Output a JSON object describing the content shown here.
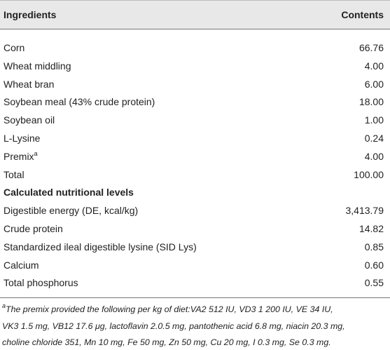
{
  "table": {
    "header": [
      "Ingredients",
      "Contents"
    ],
    "rows": [
      {
        "label": "Corn",
        "value": "66.76"
      },
      {
        "label": "Wheat middling",
        "value": "4.00"
      },
      {
        "label": "Wheat bran",
        "value": "6.00"
      },
      {
        "label": "Soybean meal (43% crude protein)",
        "value": "18.00"
      },
      {
        "label": "Soybean oil",
        "value": "1.00"
      },
      {
        "label": "L-Lysine",
        "value": "0.24"
      },
      {
        "label": "Premix",
        "sup": "a",
        "value": "4.00"
      },
      {
        "label": "Total",
        "value": "100.00"
      },
      {
        "label": "Calculated nutritional levels"
      },
      {
        "label": "Digestible energy (DE, kcal/kg)",
        "value": "3,413.79"
      },
      {
        "label": "Crude protein",
        "value": "14.82"
      },
      {
        "label": "Standardized ileal digestible lysine (SID Lys)",
        "value": "0.85"
      },
      {
        "label": "Calcium",
        "value": "0.60"
      },
      {
        "label": "Total phosphorus",
        "value": "0.55"
      }
    ]
  },
  "footnote": {
    "sup": "a",
    "lines": [
      "The premix provided the following per kg of diet:VA2 512 IU, VD3 1 200 IU, VE 34 IU,",
      "VK3 1.5 mg, VB12 17.6 μg, lactoflavin 2.0.5 mg, pantothenic acid 6.8 mg, niacin 20.3 mg,",
      "choline chloride 351, Mn 10 mg, Fe 50 mg, Zn 50 mg, Cu 20 mg, I 0.3 mg, Se 0.3 mg."
    ]
  }
}
